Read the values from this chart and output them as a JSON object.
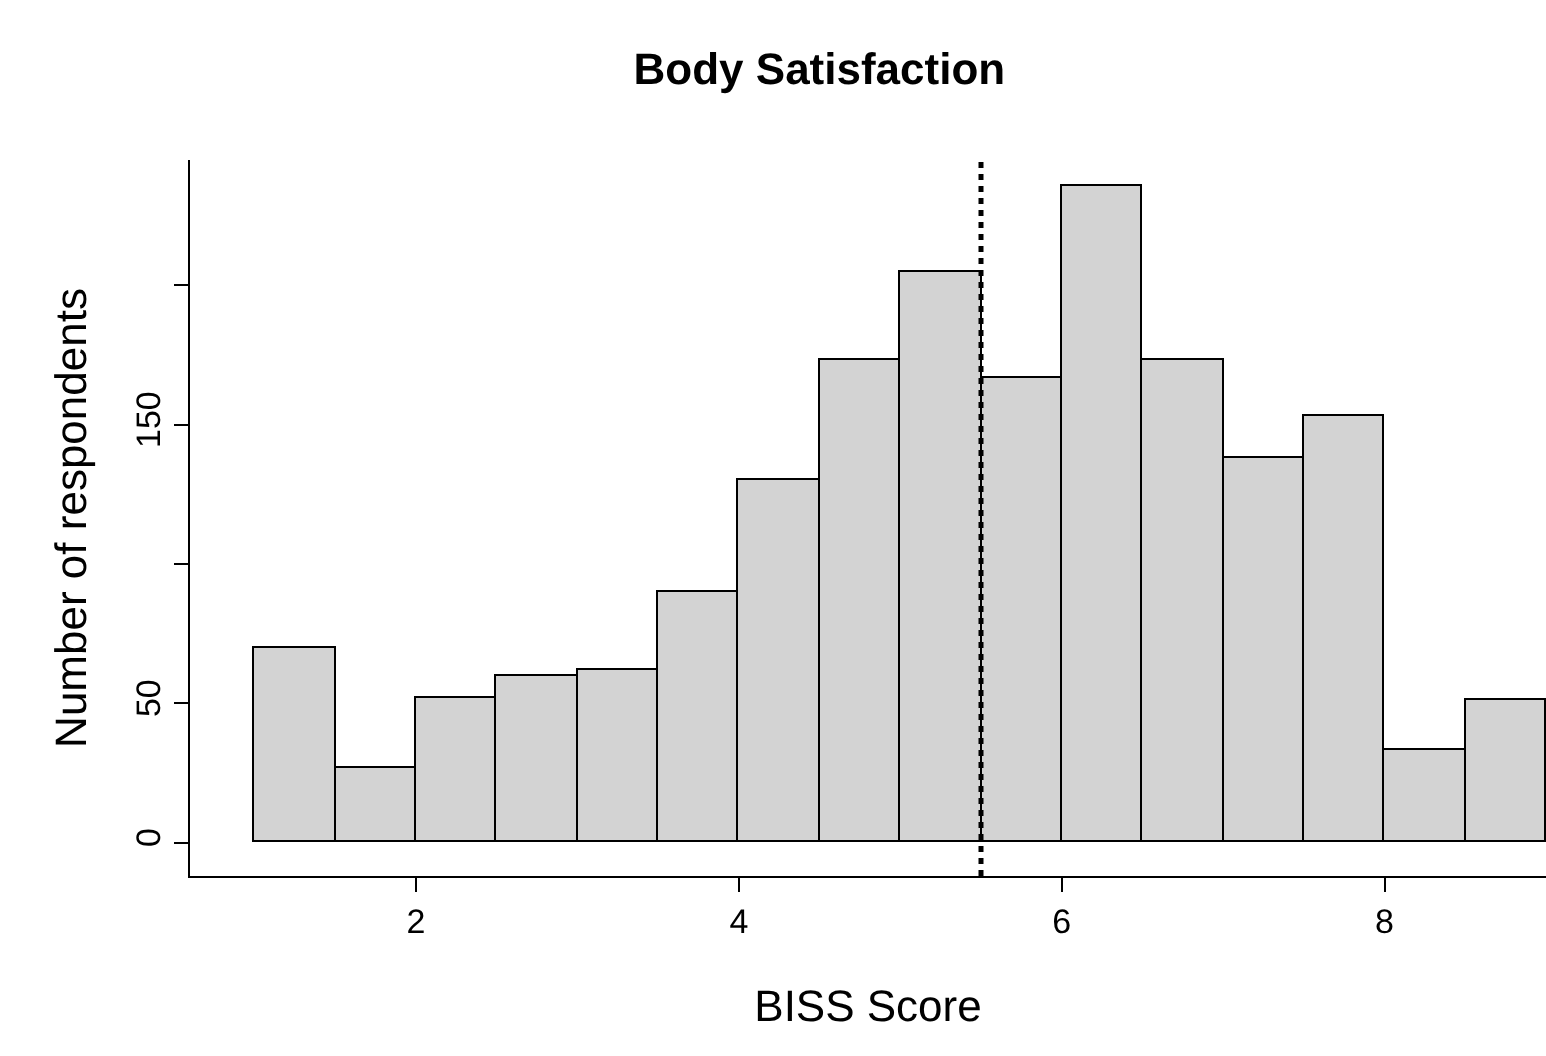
{
  "chart_data": {
    "type": "histogram",
    "title": "Body Satisfaction",
    "xlabel": "BISS Score",
    "ylabel": "Number of respondents",
    "bins": [
      1.0,
      1.5,
      2.0,
      2.5,
      3.0,
      3.5,
      4.0,
      4.5,
      5.0,
      5.5,
      6.0,
      6.5,
      7.0,
      7.5,
      8.0,
      8.5,
      9.0
    ],
    "values": [
      70,
      27,
      52,
      60,
      62,
      90,
      130,
      173,
      205,
      167,
      236,
      173,
      138,
      153,
      33,
      51
    ],
    "color": "#d3d3d3",
    "xlim": [
      0.6,
      9.0
    ],
    "xticks": [
      2,
      4,
      6,
      8
    ],
    "ylim": [
      -12,
      245
    ],
    "yticks": [
      0,
      50,
      {
        "value": 100,
        "label": null
      },
      150,
      {
        "value": 200,
        "label": null
      }
    ],
    "ref_lines": [
      {
        "axis": "x",
        "value": 5.5,
        "label": null,
        "color": "#000000",
        "line_style": "dotted"
      }
    ],
    "relative": false
  }
}
